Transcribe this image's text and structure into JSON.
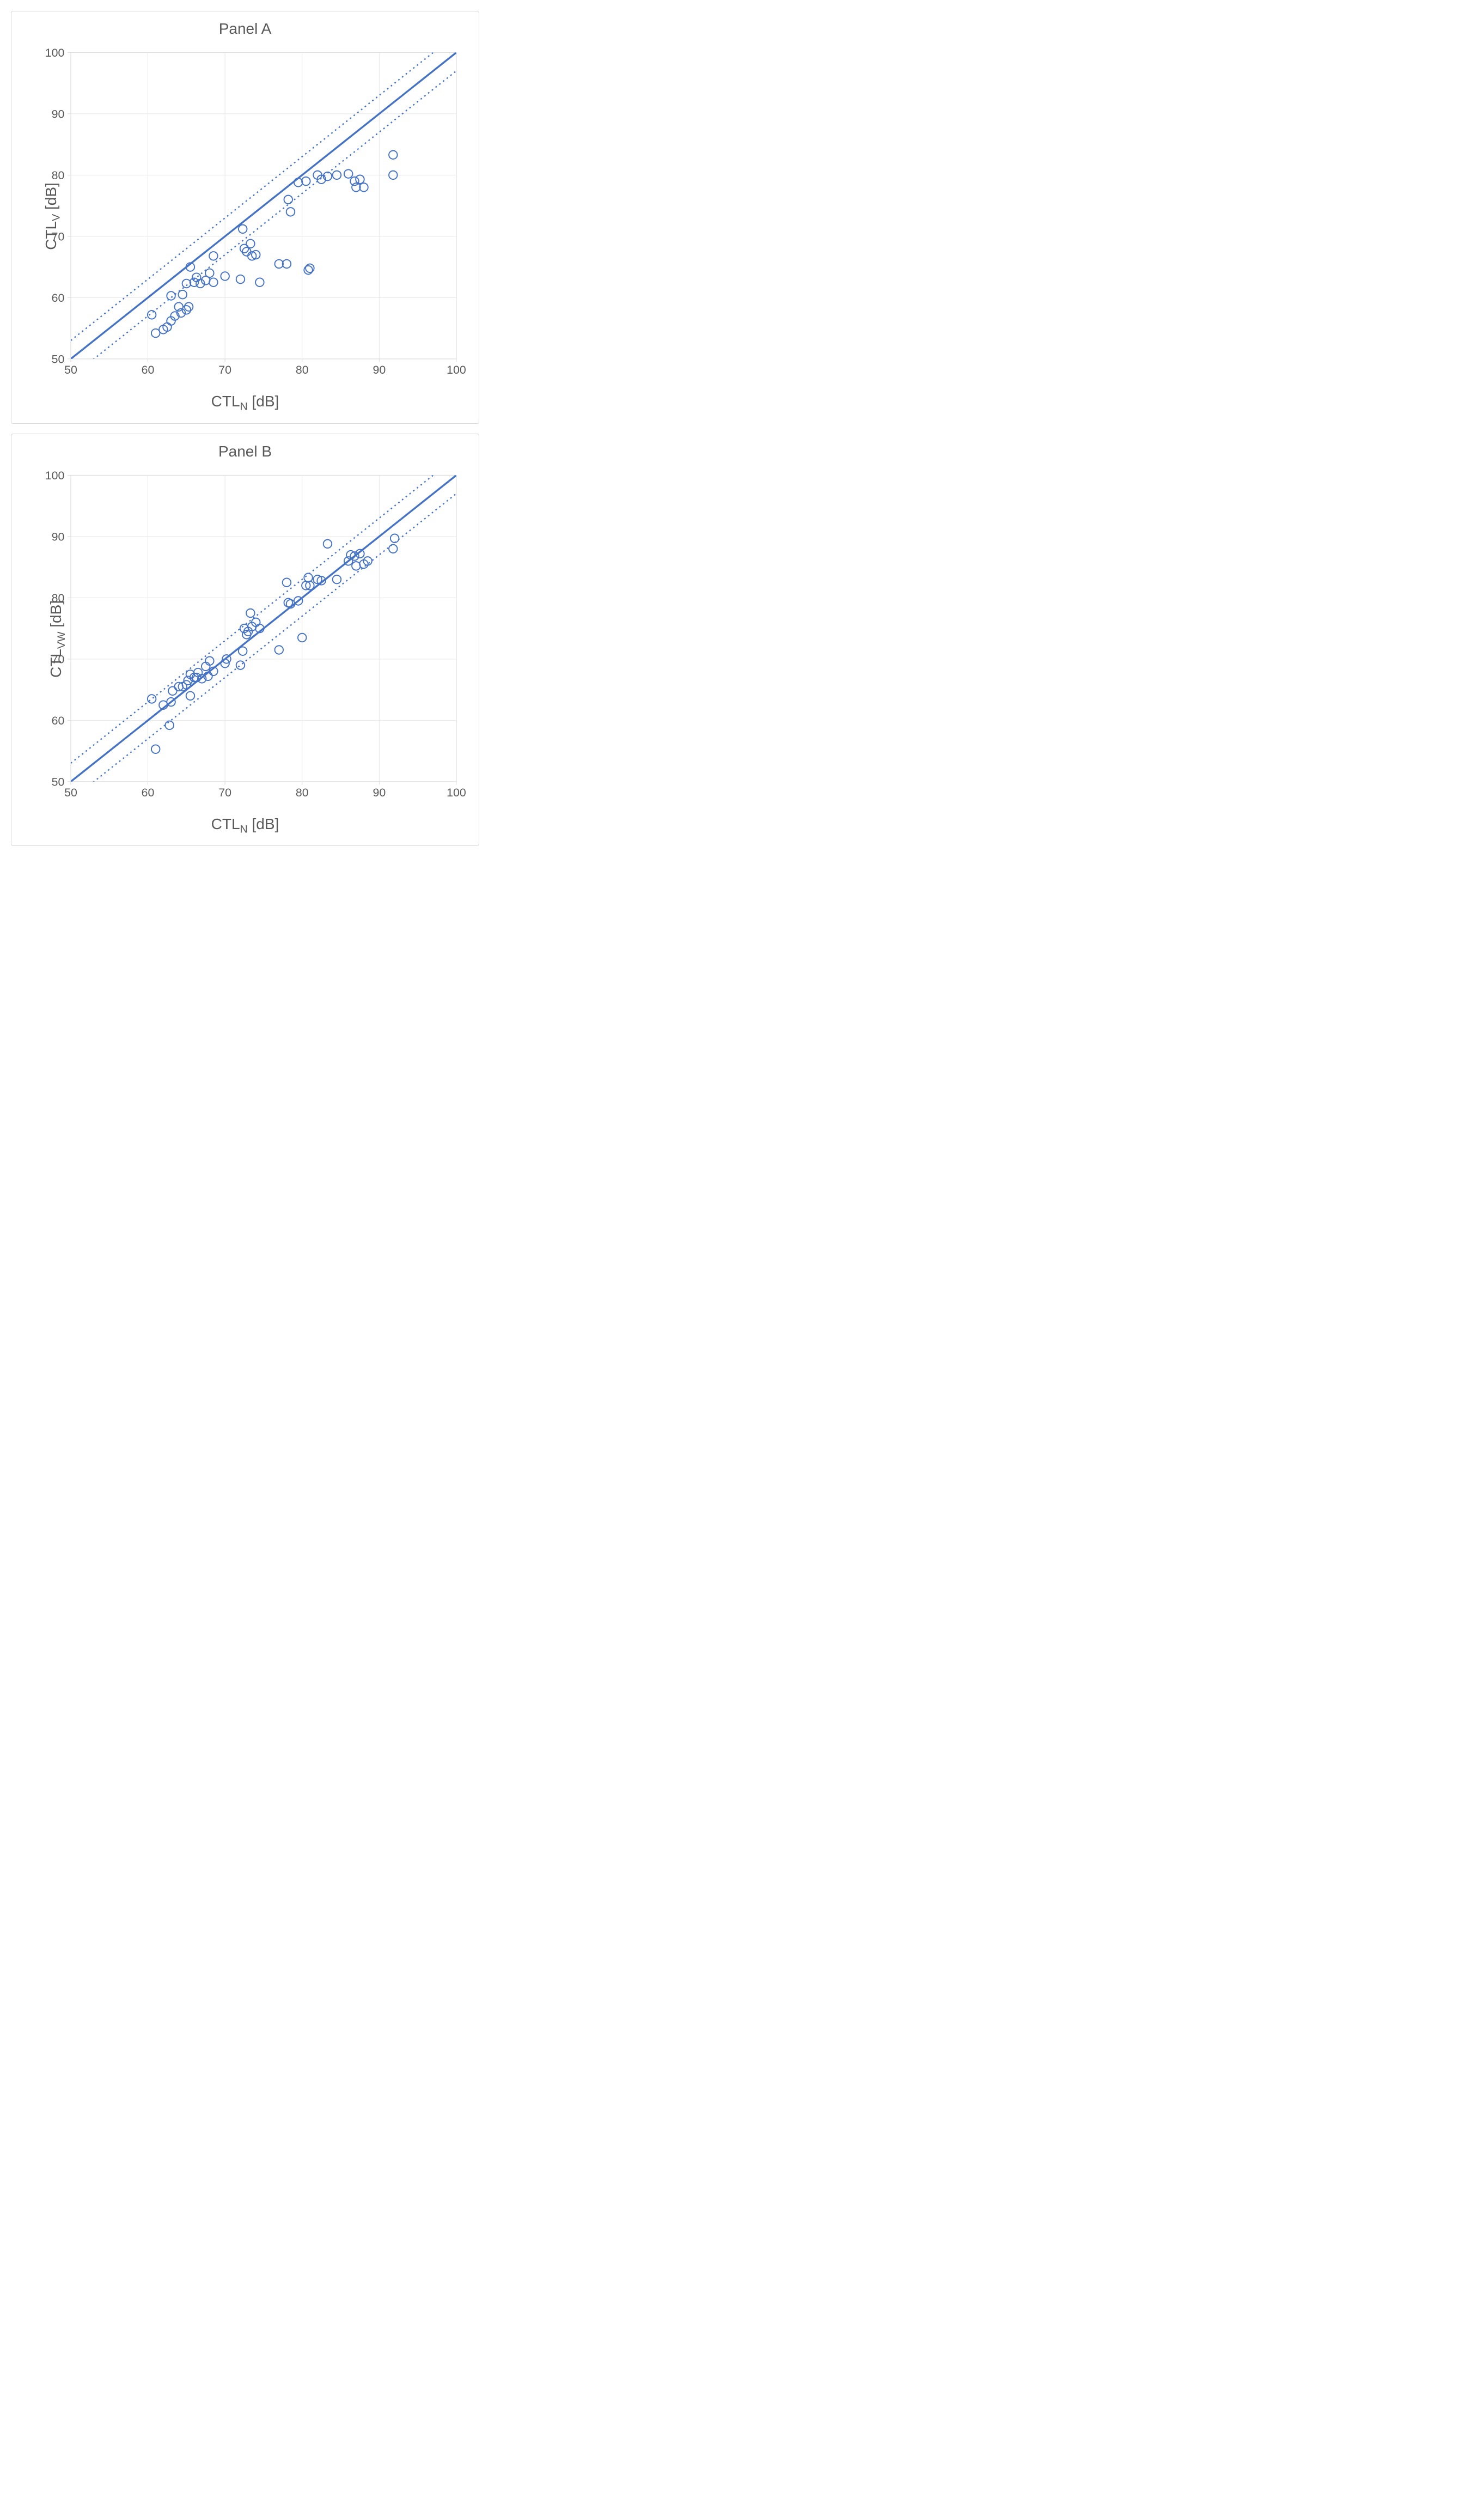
{
  "panelA": {
    "type": "scatter",
    "title": "Panel A",
    "xlabel_main": "CTL",
    "xlabel_sub": "N",
    "xlabel_unit": " [dB]",
    "ylabel_main": "CTL",
    "ylabel_sub": "V",
    "ylabel_unit": " [dB]",
    "xlim": [
      50,
      100
    ],
    "ylim": [
      50,
      100
    ],
    "tick_step": 10,
    "ticks": [
      50,
      60,
      70,
      80,
      90,
      100
    ],
    "identity_line": {
      "x1": 50,
      "y1": 50,
      "x2": 100,
      "y2": 100
    },
    "dotted_offset": 3,
    "grid_color": "#e6e6e6",
    "axis_color": "#d9d9d9",
    "tick_label_color": "#595959",
    "tick_label_fontsize": 22,
    "title_fontsize": 28,
    "label_fontsize": 28,
    "marker_color": "#4472c4",
    "marker_fill": "none",
    "marker_radius": 8,
    "marker_stroke_width": 2,
    "line_color": "#4472c4",
    "solid_line_width": 3.5,
    "dotted_line_width": 2.5,
    "dotted_dash": "3 6",
    "background_color": "#ffffff",
    "points": [
      [
        60.5,
        57.2
      ],
      [
        61.0,
        54.2
      ],
      [
        62.0,
        54.8
      ],
      [
        62.5,
        55.2
      ],
      [
        63.0,
        56.2
      ],
      [
        63.0,
        60.3
      ],
      [
        63.5,
        57.0
      ],
      [
        64.0,
        58.5
      ],
      [
        64.3,
        57.5
      ],
      [
        64.5,
        60.5
      ],
      [
        65.0,
        58.0
      ],
      [
        65.0,
        62.3
      ],
      [
        65.3,
        58.5
      ],
      [
        65.5,
        65.0
      ],
      [
        66.0,
        62.5
      ],
      [
        66.3,
        63.3
      ],
      [
        66.8,
        62.3
      ],
      [
        67.5,
        62.8
      ],
      [
        68.0,
        64.0
      ],
      [
        68.5,
        62.5
      ],
      [
        68.5,
        66.8
      ],
      [
        70.0,
        63.5
      ],
      [
        72.0,
        63.0
      ],
      [
        72.3,
        71.2
      ],
      [
        72.5,
        68.0
      ],
      [
        72.8,
        67.5
      ],
      [
        73.3,
        68.8
      ],
      [
        73.5,
        66.8
      ],
      [
        74.0,
        67.0
      ],
      [
        74.5,
        62.5
      ],
      [
        77.0,
        65.5
      ],
      [
        78.0,
        65.5
      ],
      [
        78.2,
        76.0
      ],
      [
        78.5,
        74.0
      ],
      [
        79.5,
        78.8
      ],
      [
        80.5,
        79.0
      ],
      [
        80.8,
        64.5
      ],
      [
        81.0,
        64.8
      ],
      [
        82.0,
        80.0
      ],
      [
        82.5,
        79.3
      ],
      [
        83.3,
        79.8
      ],
      [
        84.5,
        80.0
      ],
      [
        86.0,
        80.2
      ],
      [
        86.8,
        79.0
      ],
      [
        87.0,
        78.0
      ],
      [
        87.5,
        79.3
      ],
      [
        88.0,
        78.0
      ],
      [
        91.8,
        80.0
      ],
      [
        91.8,
        83.3
      ]
    ]
  },
  "panelB": {
    "type": "scatter",
    "title": "Panel B",
    "xlabel_main": "CTL",
    "xlabel_sub": "N",
    "xlabel_unit": " [dB]",
    "ylabel_main": "CTL",
    "ylabel_sub": "VW",
    "ylabel_unit": " [dB]",
    "xlim": [
      50,
      100
    ],
    "ylim": [
      50,
      100
    ],
    "tick_step": 10,
    "ticks": [
      50,
      60,
      70,
      80,
      90,
      100
    ],
    "identity_line": {
      "x1": 50,
      "y1": 50,
      "x2": 100,
      "y2": 100
    },
    "dotted_offset": 3,
    "grid_color": "#e6e6e6",
    "axis_color": "#d9d9d9",
    "tick_label_color": "#595959",
    "tick_label_fontsize": 22,
    "title_fontsize": 28,
    "label_fontsize": 28,
    "marker_color": "#4472c4",
    "marker_fill": "none",
    "marker_radius": 8,
    "marker_stroke_width": 2,
    "line_color": "#4472c4",
    "solid_line_width": 3.5,
    "dotted_line_width": 2.5,
    "dotted_dash": "3 6",
    "background_color": "#ffffff",
    "points": [
      [
        60.5,
        63.5
      ],
      [
        61.0,
        55.3
      ],
      [
        62.0,
        62.5
      ],
      [
        62.8,
        59.2
      ],
      [
        63.0,
        63.0
      ],
      [
        63.2,
        64.8
      ],
      [
        64.0,
        65.5
      ],
      [
        64.5,
        65.5
      ],
      [
        65.0,
        65.8
      ],
      [
        65.2,
        66.5
      ],
      [
        65.5,
        64.0
      ],
      [
        65.5,
        67.5
      ],
      [
        66.0,
        67.0
      ],
      [
        66.3,
        67.0
      ],
      [
        66.5,
        67.8
      ],
      [
        67.0,
        66.8
      ],
      [
        67.5,
        68.8
      ],
      [
        67.8,
        67.2
      ],
      [
        68.0,
        69.7
      ],
      [
        68.5,
        68.0
      ],
      [
        70.0,
        69.3
      ],
      [
        70.2,
        70.0
      ],
      [
        72.0,
        69.0
      ],
      [
        72.3,
        71.3
      ],
      [
        72.5,
        75.0
      ],
      [
        72.8,
        74.0
      ],
      [
        73.0,
        74.5
      ],
      [
        73.3,
        77.5
      ],
      [
        73.5,
        75.3
      ],
      [
        74.0,
        76.0
      ],
      [
        74.5,
        75.0
      ],
      [
        77.0,
        71.5
      ],
      [
        78.0,
        82.5
      ],
      [
        78.2,
        79.2
      ],
      [
        78.5,
        79.0
      ],
      [
        79.5,
        79.5
      ],
      [
        80.0,
        73.5
      ],
      [
        80.5,
        82.0
      ],
      [
        80.8,
        83.3
      ],
      [
        81.0,
        82.0
      ],
      [
        82.0,
        83.0
      ],
      [
        82.5,
        82.8
      ],
      [
        83.3,
        88.8
      ],
      [
        84.5,
        83.0
      ],
      [
        86.0,
        86.0
      ],
      [
        86.3,
        87.0
      ],
      [
        86.8,
        86.8
      ],
      [
        87.0,
        85.2
      ],
      [
        87.5,
        87.2
      ],
      [
        88.0,
        85.5
      ],
      [
        88.5,
        86.0
      ],
      [
        91.8,
        88.0
      ],
      [
        92.0,
        89.7
      ]
    ]
  }
}
